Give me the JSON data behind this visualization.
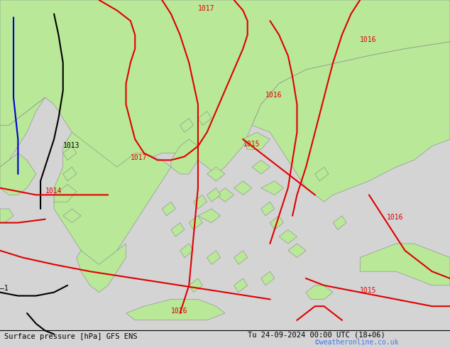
{
  "title_left": "Surface pressure [hPa] GFS ENS",
  "title_right": "Tu 24-09-2024 00:00 UTC (18+06)",
  "watermark": "©weatheronline.co.uk",
  "bg_color": "#d4d4d4",
  "sea_color": "#d4d4d4",
  "green_color": "#b8e898",
  "isobar_red_color": "#e00000",
  "isobar_black_color": "#000000",
  "isobar_blue_color": "#0000cc",
  "coast_color": "#888888",
  "footer_fontsize": 8,
  "watermark_color": "#4477ee",
  "label_color_red": "#cc0000",
  "label_color_black": "#000000"
}
